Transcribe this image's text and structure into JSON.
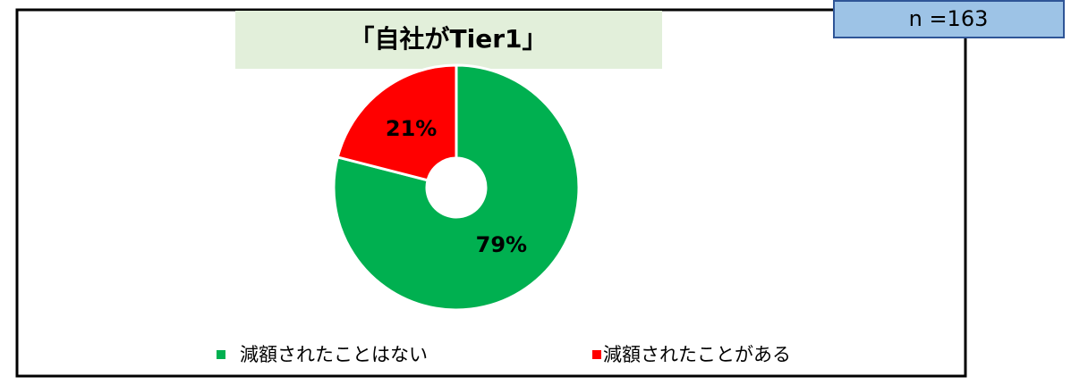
{
  "chart_data": {
    "type": "pie",
    "title": "「自社がTier1」",
    "annotation": "n =163",
    "categories": [
      "減額されたことはない",
      "減額されたことがある"
    ],
    "values": [
      79,
      21
    ],
    "value_labels": [
      "79%",
      "21%"
    ],
    "colors": [
      "#00b050",
      "#ff0000"
    ],
    "donut": true,
    "legend": "bottom"
  }
}
